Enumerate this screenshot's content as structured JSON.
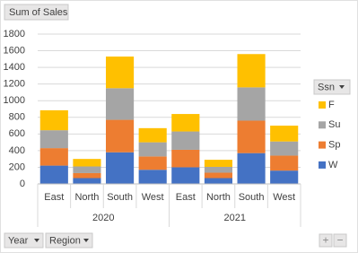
{
  "chart_data": {
    "type": "stacked_bar",
    "value_button": "Sum of Sales",
    "axis_buttons": [
      "Year",
      "Region"
    ],
    "zoom_buttons": [
      "+",
      "−"
    ],
    "legend_title": "Ssn",
    "legend_position": "right",
    "groups": [
      "2020",
      "2021"
    ],
    "categories": [
      "East",
      "North",
      "South",
      "West",
      "East",
      "North",
      "South",
      "West"
    ],
    "series": [
      {
        "name": "W",
        "color": "#4472c4",
        "values": [
          220,
          70,
          380,
          170,
          200,
          70,
          370,
          160
        ]
      },
      {
        "name": "Sp",
        "color": "#ed7d31",
        "values": [
          210,
          60,
          390,
          160,
          210,
          65,
          390,
          180
        ]
      },
      {
        "name": "Su",
        "color": "#a5a5a5",
        "values": [
          215,
          80,
          380,
          170,
          220,
          70,
          400,
          170
        ]
      },
      {
        "name": "F",
        "color": "#ffc000",
        "values": [
          240,
          90,
          380,
          170,
          210,
          85,
          400,
          190
        ]
      }
    ],
    "ylim": [
      0,
      1800
    ],
    "yticks": [
      0,
      200,
      400,
      600,
      800,
      1000,
      1200,
      1400,
      1600,
      1800
    ],
    "grid": true
  }
}
